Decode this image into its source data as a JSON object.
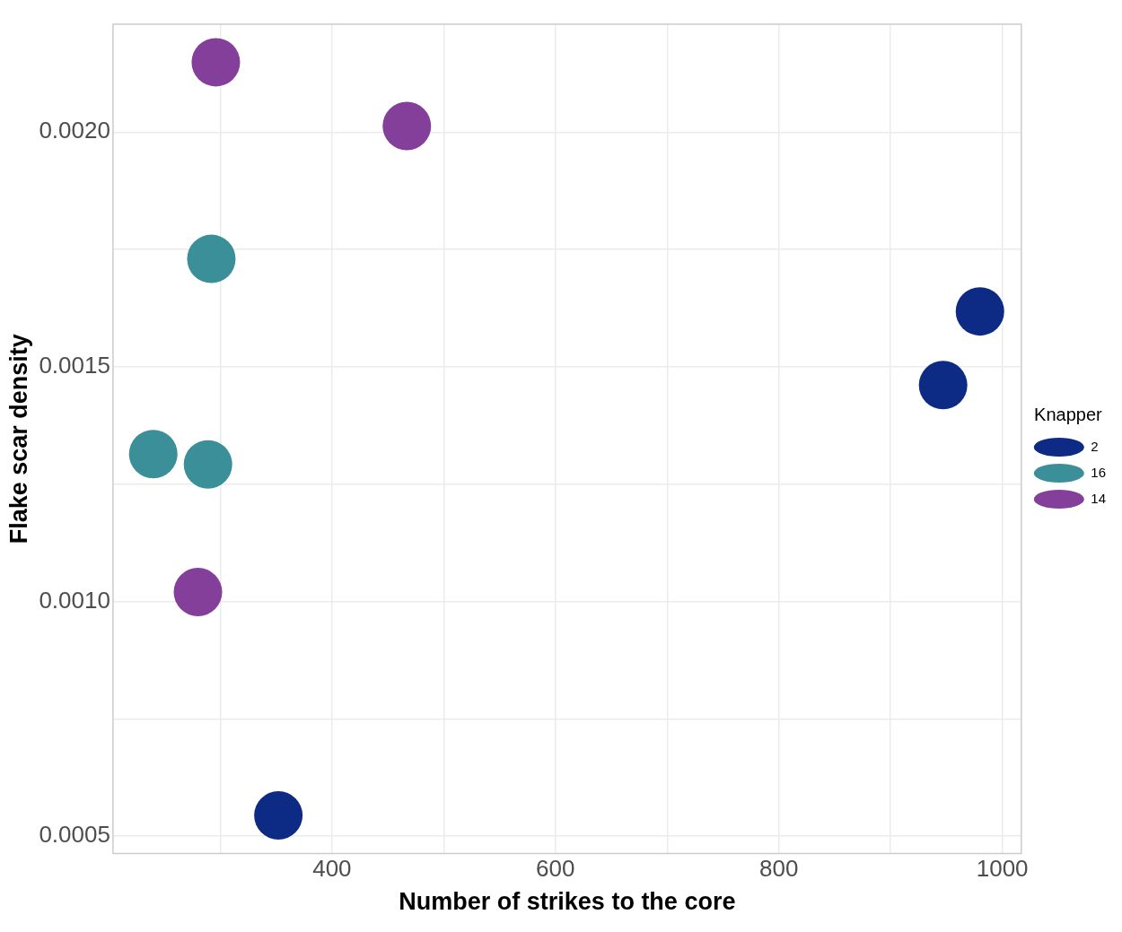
{
  "chart_data": {
    "type": "scatter",
    "xlabel": "Number of strikes to the core",
    "ylabel": "Flake scar density",
    "legend_title": "Knapper",
    "legend": "right",
    "grid": true,
    "marker": "circle",
    "xlim": [
      204,
      1017
    ],
    "ylim": [
      0.000463,
      0.00223
    ],
    "xticks": [
      {
        "value": 300,
        "label": null
      },
      400,
      {
        "value": 500,
        "label": null
      },
      600,
      {
        "value": 700,
        "label": null
      },
      800,
      {
        "value": 900,
        "label": null
      },
      1000
    ],
    "yticks": [
      {
        "value": 0.0005,
        "label": "0.0005"
      },
      {
        "value": 0.00075,
        "label": null
      },
      {
        "value": 0.001,
        "label": "0.0010"
      },
      {
        "value": 0.00125,
        "label": null
      },
      {
        "value": 0.0015,
        "label": "0.0015"
      },
      {
        "value": 0.00175,
        "label": null
      },
      {
        "value": 0.002,
        "label": "0.0020"
      }
    ],
    "series": [
      {
        "name": "2",
        "color": "#0d2a84",
        "x": [
          980,
          947,
          352
        ],
        "values": [
          0.001618,
          0.001461,
          0.000544
        ]
      },
      {
        "name": "16",
        "color": "#3a8f98",
        "x": [
          292,
          240,
          289
        ],
        "values": [
          0.00173,
          0.001314,
          0.001292
        ]
      },
      {
        "name": "14",
        "color": "#843f9a",
        "x": [
          296,
          467,
          280
        ],
        "values": [
          0.002149,
          0.002013,
          0.00102
        ]
      }
    ]
  }
}
